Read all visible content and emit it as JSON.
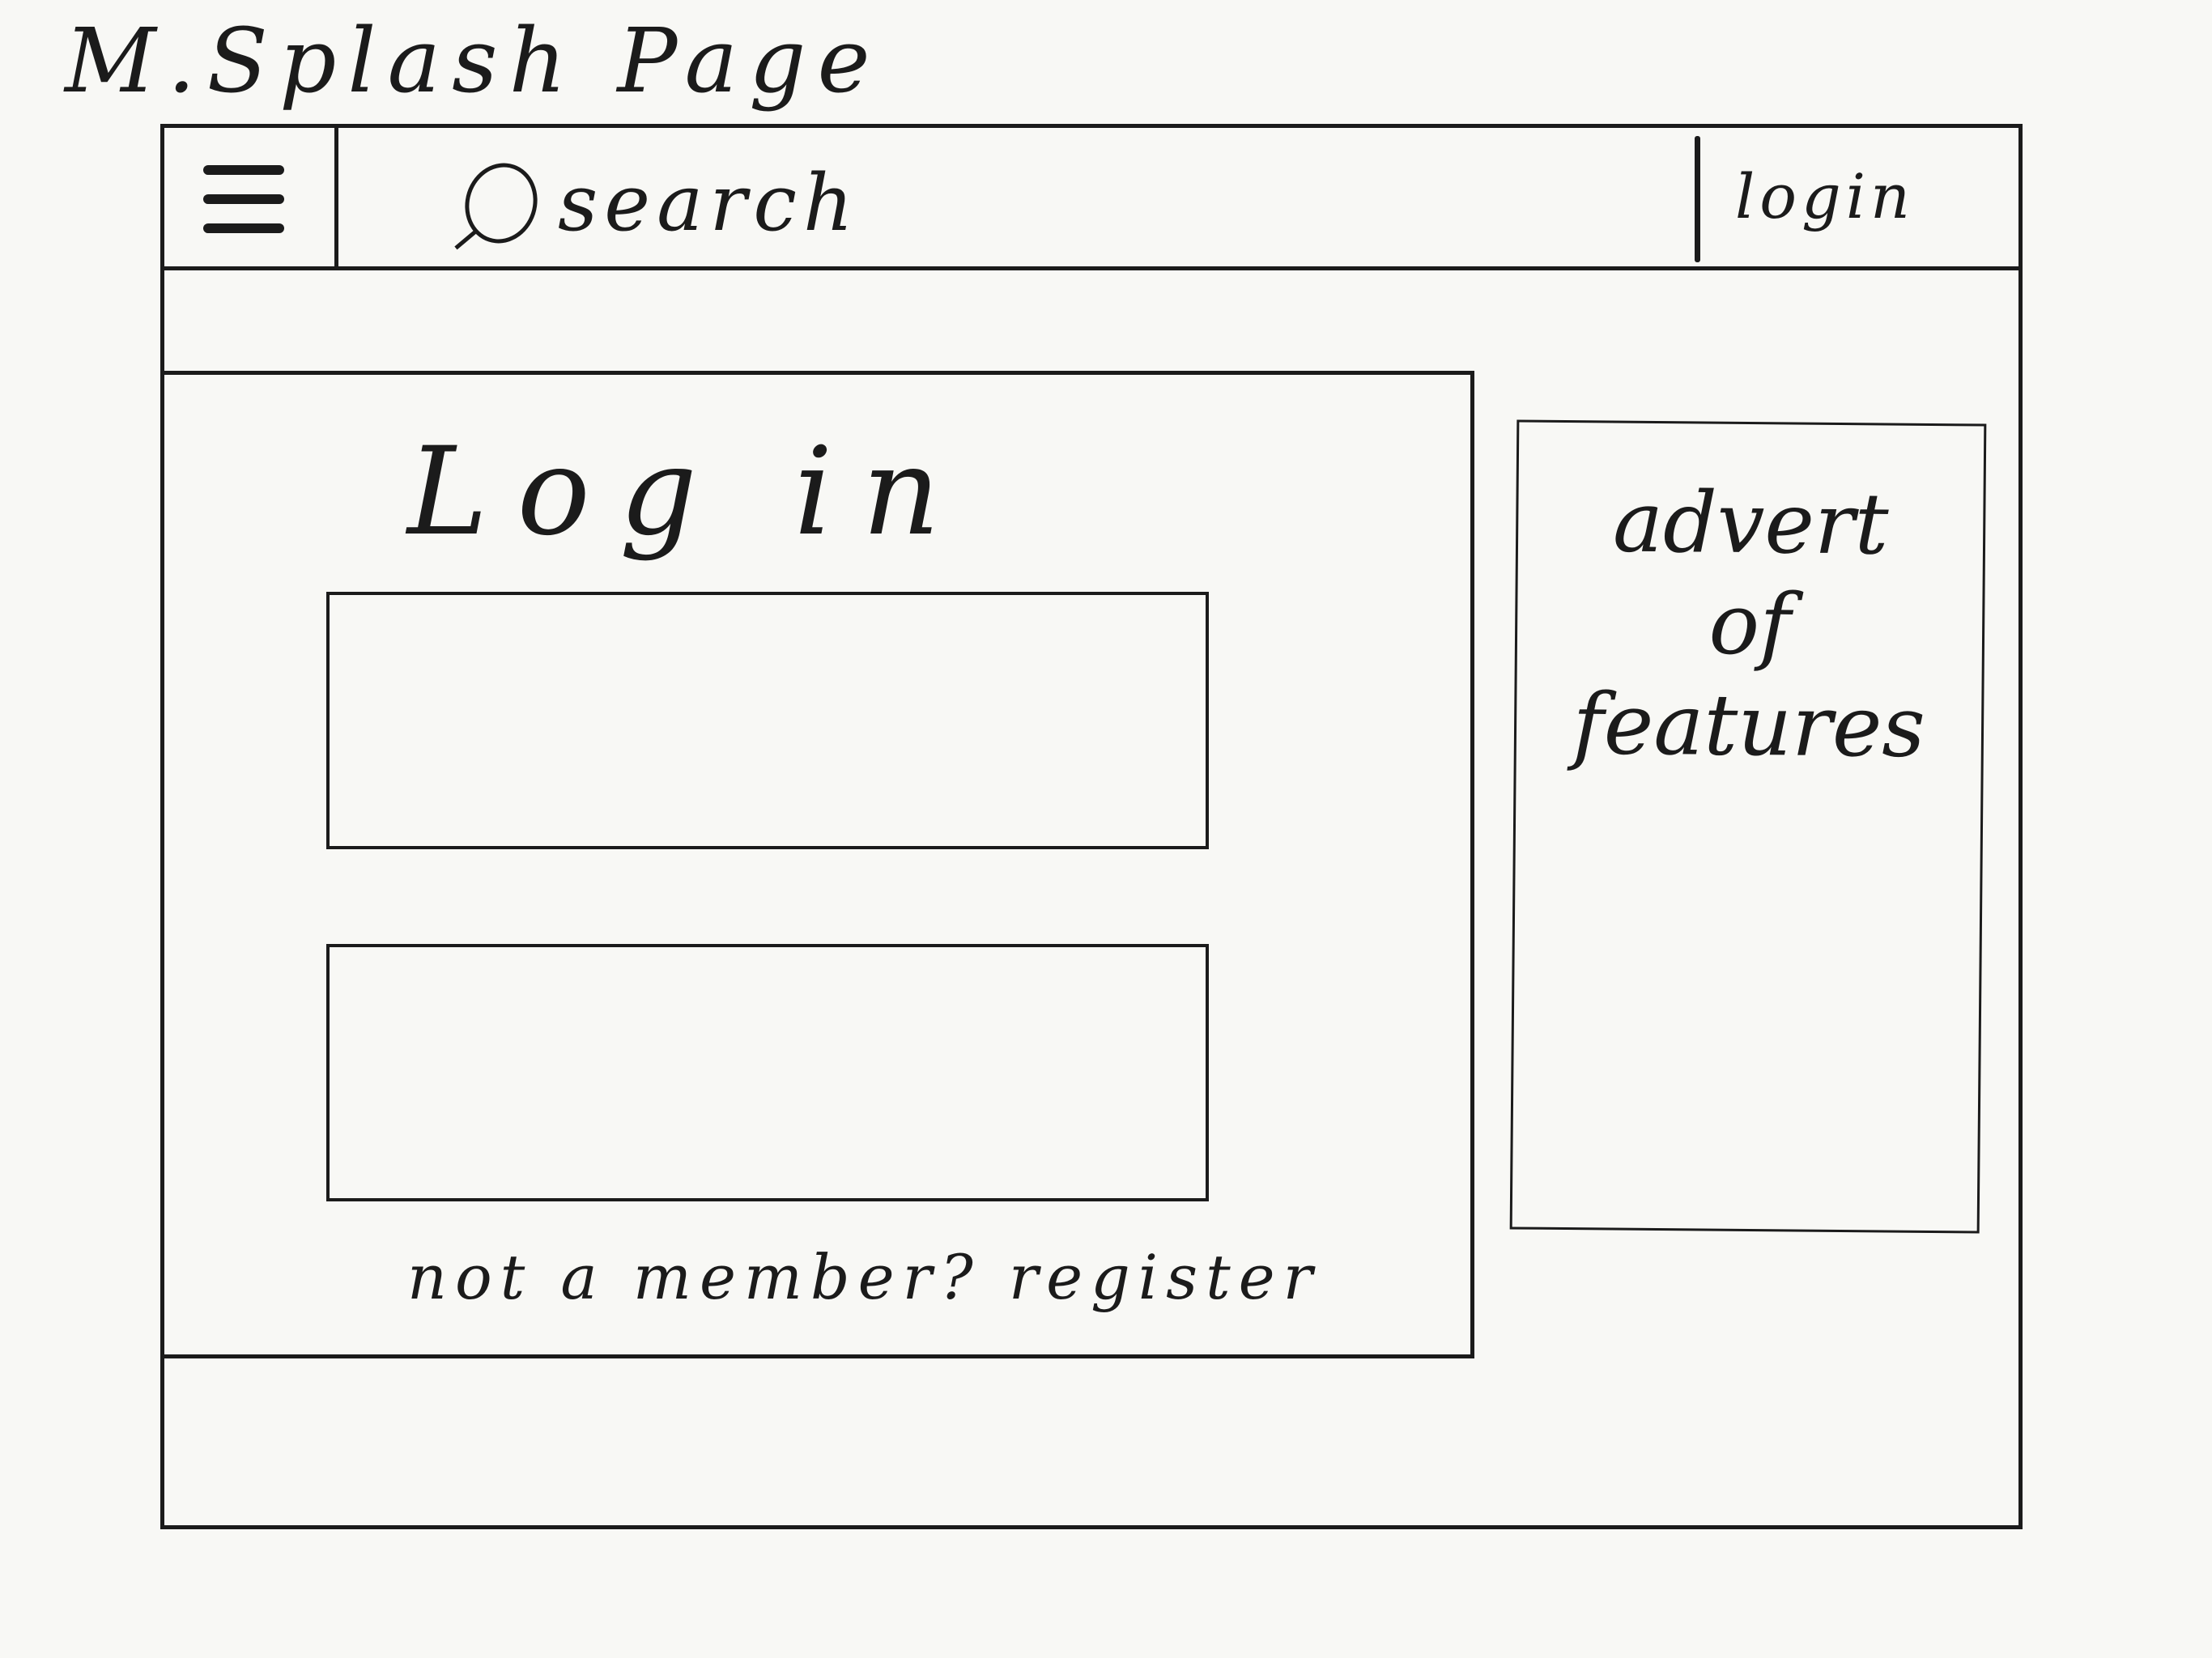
{
  "sketch": {
    "title": "M.Splash Page"
  },
  "header": {
    "search_label": "search",
    "login_label": "login"
  },
  "login_card": {
    "title": "Log in",
    "username_value": "",
    "password_value": "",
    "register_prompt": "not a member? register"
  },
  "advert": {
    "text": "advert\nof\nfeatures"
  },
  "colors": {
    "ink": "#1b1b1b",
    "paper": "#f8f8f5"
  },
  "icons": {
    "menu": "hamburger-icon",
    "search": "search-icon"
  }
}
